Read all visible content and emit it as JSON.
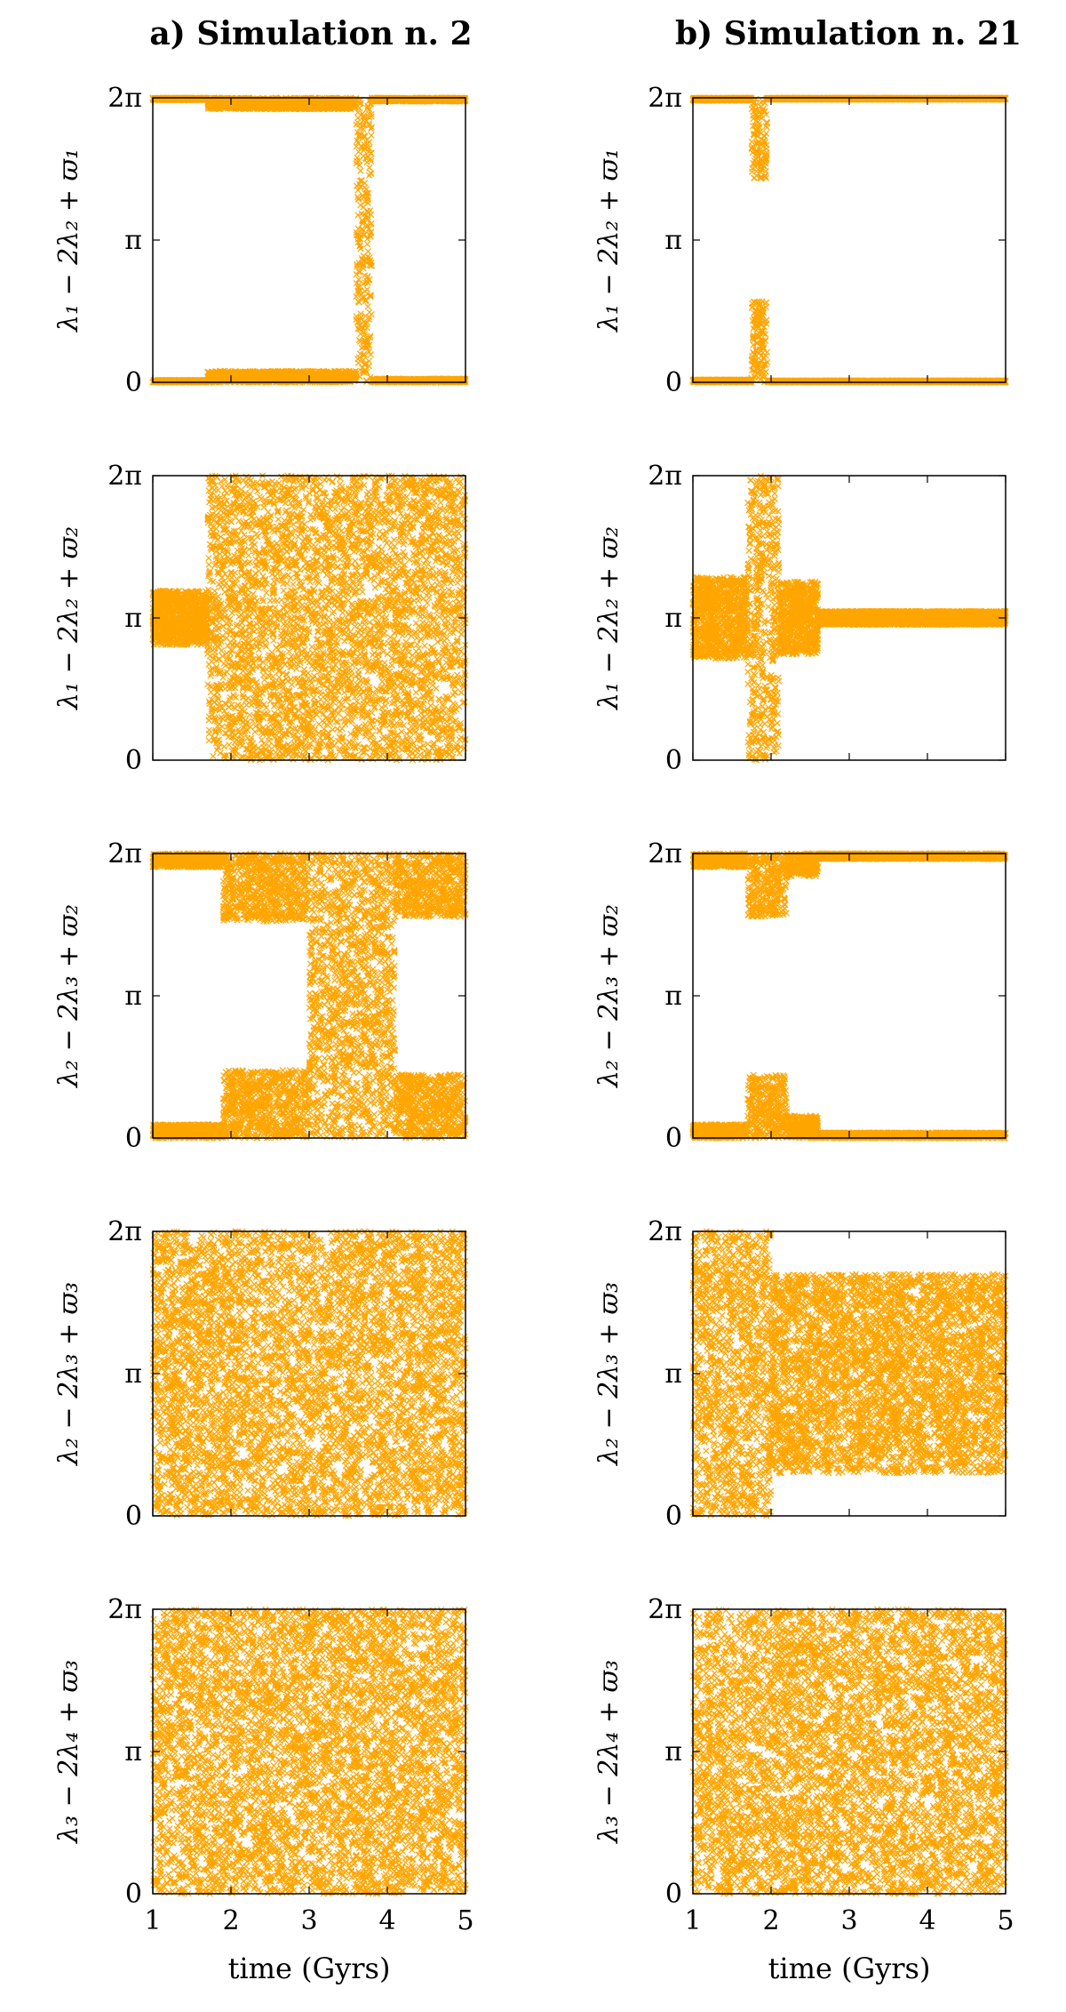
{
  "columns": [
    {
      "title": "a) Simulation n. 2"
    },
    {
      "title": "b) Simulation n. 21"
    }
  ],
  "rows": [
    {
      "ylabel": "λ₁ − 2λ₂ + ϖ₁"
    },
    {
      "ylabel": "λ₁ − 2λ₂ + ϖ₂"
    },
    {
      "ylabel": "λ₂ − 2λ₃ + ϖ₂"
    },
    {
      "ylabel": "λ₂ − 2λ₃ + ϖ₃"
    },
    {
      "ylabel": "λ₃ − 2λ₄ + ϖ₃"
    }
  ],
  "xlabel": "time (Gyrs)",
  "xticks": [
    "1",
    "2",
    "3",
    "4",
    "5"
  ],
  "yticks": [
    "0",
    "π",
    "2π"
  ],
  "marker_color": "#ffa500",
  "chart_data": {
    "type": "scatter",
    "marker": "x",
    "xlabel": "time (Gyrs)",
    "xlim": [
      1,
      5
    ],
    "ylim_radians": [
      0,
      6.2832
    ],
    "series": [
      {
        "name": "a) Simulation n. 2 · λ₁ − 2λ₂ + ϖ₁",
        "description": "libration near 0/2π; slow drift upward on both edges to ~0.3 rad by 3.6 Gyr; brief scattering near t≈1.7 and t≈3.6–3.8 Gyr",
        "segments": [
          {
            "t": [
              1.0,
              1.7
            ],
            "center": 0.0,
            "spread": 0.05
          },
          {
            "t": [
              1.7,
              3.6
            ],
            "center": 0.0,
            "spread": 0.25
          },
          {
            "t": [
              3.6,
              3.8
            ],
            "center": 0.0,
            "spread": 3.14
          },
          {
            "t": [
              3.8,
              5.0
            ],
            "center": 0.0,
            "spread": 0.08
          }
        ]
      },
      {
        "name": "a) Simulation n. 2 · λ₁ − 2λ₂ + ϖ₂",
        "description": "libration around π until ~1.7 Gyr then circulation",
        "segments": [
          {
            "t": [
              1.0,
              1.7
            ],
            "center": 3.1416,
            "spread": 0.6
          },
          {
            "t": [
              1.7,
              5.0
            ],
            "center": 3.1416,
            "spread": 3.14
          }
        ]
      },
      {
        "name": "a) Simulation n. 2 · λ₂ − 2λ₃ + ϖ₂",
        "description": "libration around 0/2π with growing amplitude, reaching ~π at 3.5–4 Gyr",
        "segments": [
          {
            "t": [
              1.0,
              1.9
            ],
            "center": 0.0,
            "spread": 0.3
          },
          {
            "t": [
              1.9,
              3.0
            ],
            "center": 0.0,
            "spread": 1.5
          },
          {
            "t": [
              3.0,
              4.1
            ],
            "center": 0.0,
            "spread": 3.14
          },
          {
            "t": [
              4.1,
              5.0
            ],
            "center": 0.0,
            "spread": 1.4
          }
        ]
      },
      {
        "name": "a) Simulation n. 2 · λ₂ − 2λ₃ + ϖ₃",
        "description": "circulation over full range",
        "segments": [
          {
            "t": [
              1.0,
              5.0
            ],
            "center": 3.1416,
            "spread": 3.14
          }
        ]
      },
      {
        "name": "a) Simulation n. 2 · λ₃ − 2λ₄ + ϖ₃",
        "description": "circulation over full range; small gap near π at t≈1.7 Gyr",
        "segments": [
          {
            "t": [
              1.0,
              5.0
            ],
            "center": 3.1416,
            "spread": 3.14
          }
        ]
      },
      {
        "name": "b) Simulation n. 21 · λ₁ − 2λ₂ + ϖ₁",
        "description": "tight libration at 0/2π with brief excursion around t≈1.8–1.9 Gyr",
        "segments": [
          {
            "t": [
              1.0,
              1.75
            ],
            "center": 0.0,
            "spread": 0.06
          },
          {
            "t": [
              1.75,
              1.95
            ],
            "center": 0.0,
            "spread": 1.8
          },
          {
            "t": [
              1.95,
              5.0
            ],
            "center": 0.0,
            "spread": 0.04
          }
        ]
      },
      {
        "name": "b) Simulation n. 21 · λ₁ − 2λ₂ + ϖ₂",
        "description": "libration around π; large amplitude near 1.8–2.1 Gyr, decaying to small amplitude after 2.6 Gyr",
        "segments": [
          {
            "t": [
              1.0,
              1.7
            ],
            "center": 3.1416,
            "spread": 0.9
          },
          {
            "t": [
              1.7,
              2.1
            ],
            "center": 3.1416,
            "spread": 3.14
          },
          {
            "t": [
              2.1,
              2.6
            ],
            "center": 3.1416,
            "spread": 0.8
          },
          {
            "t": [
              2.6,
              5.0
            ],
            "center": 3.1416,
            "spread": 0.15
          }
        ]
      },
      {
        "name": "b) Simulation n. 21 · λ₂ − 2λ₃ + ϖ₂",
        "description": "libration around 0/2π; amplitude peaks near 2 Gyr then decays",
        "segments": [
          {
            "t": [
              1.0,
              1.7
            ],
            "center": 0.0,
            "spread": 0.3
          },
          {
            "t": [
              1.7,
              2.2
            ],
            "center": 0.0,
            "spread": 1.4
          },
          {
            "t": [
              2.2,
              2.6
            ],
            "center": 0.0,
            "spread": 0.5
          },
          {
            "t": [
              2.6,
              5.0
            ],
            "center": 0.0,
            "spread": 0.12
          }
        ]
      },
      {
        "name": "b) Simulation n. 21 · λ₂ − 2λ₃ + ϖ₃",
        "description": "circulation; after 2 Gyr points concentrate around π",
        "segments": [
          {
            "t": [
              1.0,
              2.0
            ],
            "center": 3.1416,
            "spread": 3.14
          },
          {
            "t": [
              2.0,
              5.0
            ],
            "center": 3.1416,
            "spread": 2.2
          }
        ]
      },
      {
        "name": "b) Simulation n. 21 · λ₃ − 2λ₄ + ϖ₃",
        "description": "circulation with sparser region around π after 2 Gyr",
        "segments": [
          {
            "t": [
              1.0,
              5.0
            ],
            "center": 3.1416,
            "spread": 3.14
          }
        ]
      }
    ]
  }
}
